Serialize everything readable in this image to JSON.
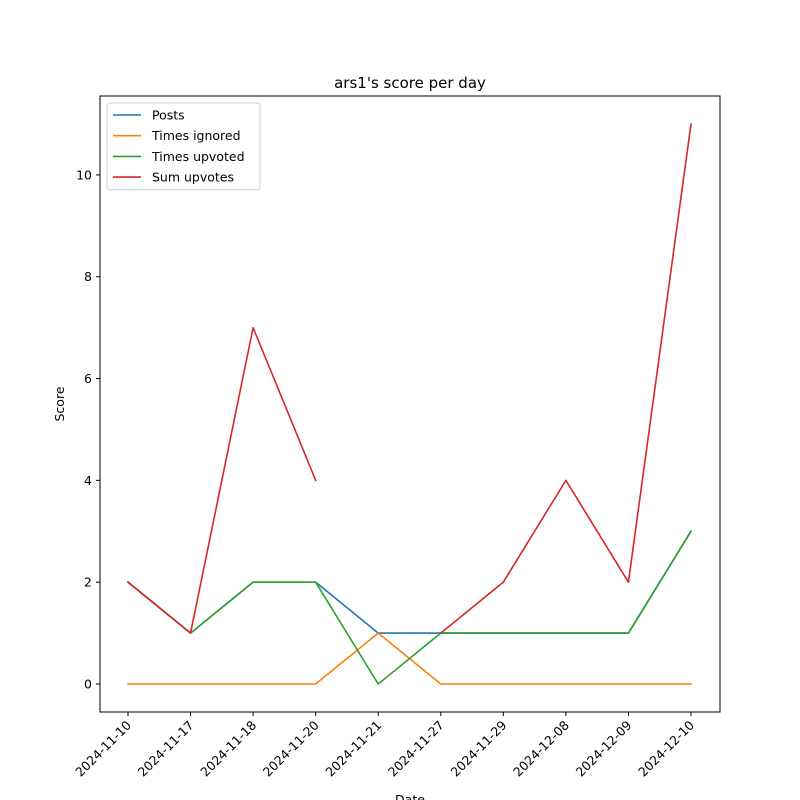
{
  "chart_data": {
    "type": "line",
    "title": "ars1's score per day",
    "xlabel": "Date",
    "ylabel": "Score",
    "categories": [
      "2024-11-10",
      "2024-11-17",
      "2024-11-18",
      "2024-11-20",
      "2024-11-21",
      "2024-11-27",
      "2024-11-29",
      "2024-12-08",
      "2024-12-09",
      "2024-12-10"
    ],
    "ylim": [
      -0.55,
      11.55
    ],
    "yticks": [
      0,
      2,
      4,
      6,
      8,
      10
    ],
    "grid": false,
    "legend_position": "top-left",
    "series": [
      {
        "name": "Posts",
        "color": "#1f77b4",
        "values": [
          2,
          1,
          2,
          2,
          1,
          1,
          1,
          1,
          1,
          3
        ]
      },
      {
        "name": "Times ignored",
        "color": "#ff7f0e",
        "values": [
          0,
          0,
          0,
          0,
          1,
          0,
          0,
          0,
          0,
          0
        ]
      },
      {
        "name": "Times upvoted",
        "color": "#2ca02c",
        "values": [
          2,
          1,
          2,
          2,
          0,
          1,
          1,
          1,
          1,
          3
        ]
      },
      {
        "name": "Sum upvotes",
        "color": "#d62728",
        "values": [
          2,
          1,
          7,
          4,
          null,
          1,
          2,
          4,
          2,
          11
        ]
      }
    ]
  }
}
